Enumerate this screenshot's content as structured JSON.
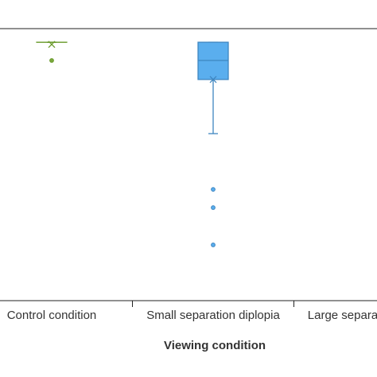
{
  "chart_data": {
    "type": "box",
    "xlabel": "Viewing condition",
    "categories": [
      "Control condition",
      "Small separation diplopia",
      "Large separation diplopia"
    ],
    "ylim": [
      0,
      100
    ],
    "series": [
      {
        "color": "#7aa83c",
        "q1": 95,
        "median": 95,
        "q3": 95,
        "whisker_low": 95,
        "whisker_high": 95,
        "mean": 94.2,
        "outliers": [
          88.3
        ]
      },
      {
        "color": "#5aaeee",
        "q1": 81.3,
        "median": 88.3,
        "q3": 95,
        "whisker_low": 61.4,
        "whisker_high": 95,
        "mean": 81.3,
        "outliers": [
          40.9,
          34.2,
          20.5
        ]
      },
      {
        "color": "#5aaeee",
        "q1": null,
        "median": null,
        "q3": null,
        "whisker_low": null,
        "whisker_high": null,
        "mean": null,
        "outliers": []
      }
    ]
  }
}
